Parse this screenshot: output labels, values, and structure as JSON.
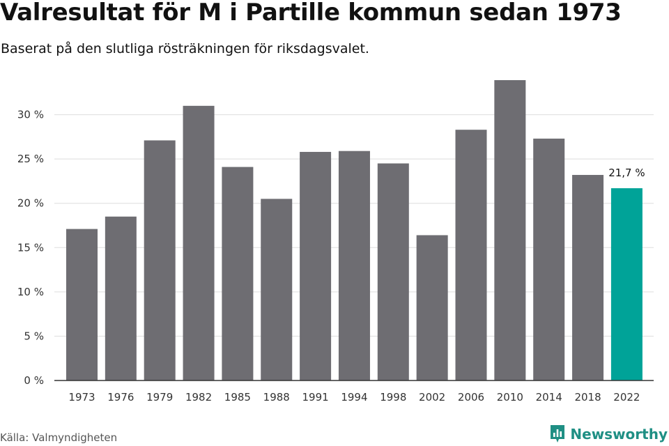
{
  "chart_data": {
    "type": "bar",
    "title": "Valresultat för M i Partille kommun sedan 1973",
    "subtitle": "Baserat på den slutliga rösträkningen för riksdagsvalet.",
    "categories": [
      "1973",
      "1976",
      "1979",
      "1982",
      "1985",
      "1988",
      "1991",
      "1994",
      "1998",
      "2002",
      "2006",
      "2010",
      "2014",
      "2018",
      "2022"
    ],
    "values": [
      17.1,
      18.5,
      27.1,
      31.0,
      24.1,
      20.5,
      25.8,
      25.9,
      24.5,
      16.4,
      28.3,
      33.9,
      27.3,
      23.2,
      21.7
    ],
    "ylim": [
      0,
      35
    ],
    "yticks": [
      0,
      5,
      10,
      15,
      20,
      25,
      30
    ],
    "ytick_labels": [
      "0 %",
      "5 %",
      "10 %",
      "15 %",
      "20 %",
      "25 %",
      "30 %"
    ],
    "xlabel": "",
    "ylabel": "",
    "highlight_index": 14,
    "annotation": "21,7 %",
    "grid": true,
    "colors": {
      "bar": "#6e6d72",
      "highlight": "#00a398",
      "grid": "#dddddd",
      "axis": "#333333"
    }
  },
  "footer": {
    "source": "Källa: Valmyndigheten",
    "brand": "Newsworthy",
    "brand_icon": "newsworthy-logo-icon"
  }
}
